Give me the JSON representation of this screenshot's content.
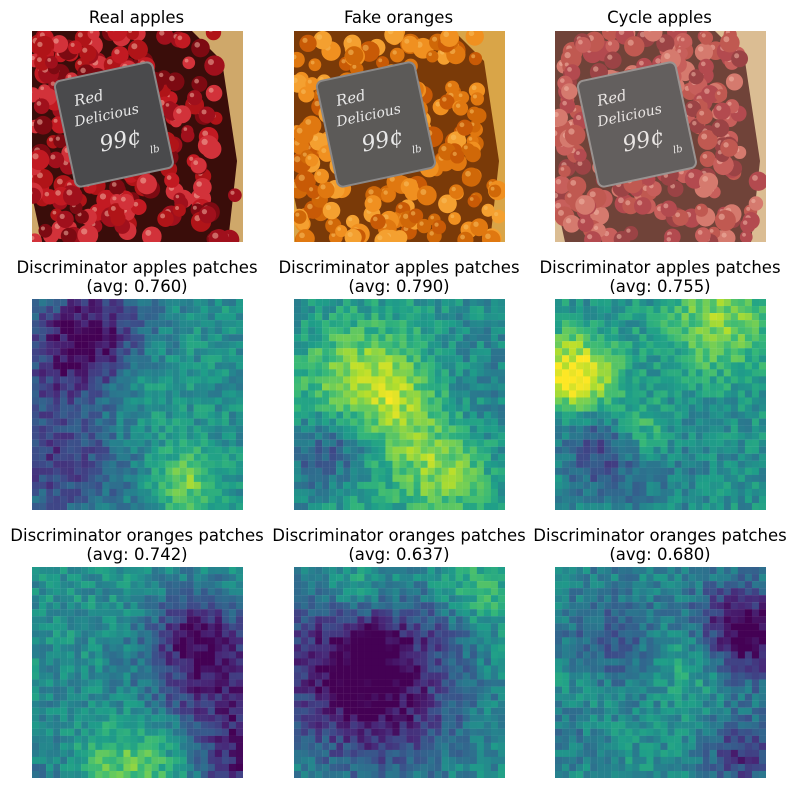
{
  "figure": {
    "panels": [
      {
        "id": "real-apples",
        "title": [
          "Real apples"
        ],
        "kind": "photo",
        "palette": "apples",
        "tint": "full"
      },
      {
        "id": "fake-oranges",
        "title": [
          "Fake oranges"
        ],
        "kind": "photo",
        "palette": "oranges",
        "tint": "full"
      },
      {
        "id": "cycle-apples",
        "title": [
          "Cycle apples"
        ],
        "kind": "photo",
        "palette": "apples",
        "tint": "muted"
      },
      {
        "id": "disc-apples-real",
        "title": [
          "Discriminator apples patches",
          "(avg: 0.760)"
        ],
        "kind": "heatmap",
        "seed": 11
      },
      {
        "id": "disc-apples-fake",
        "title": [
          "Discriminator apples patches",
          "(avg: 0.790)"
        ],
        "kind": "heatmap",
        "seed": 23
      },
      {
        "id": "disc-apples-cycle",
        "title": [
          "Discriminator apples patches",
          "(avg: 0.755)"
        ],
        "kind": "heatmap",
        "seed": 37
      },
      {
        "id": "disc-oranges-real",
        "title": [
          "Discriminator oranges patches",
          "(avg: 0.742)"
        ],
        "kind": "heatmap",
        "seed": 41
      },
      {
        "id": "disc-oranges-fake",
        "title": [
          "Discriminator oranges patches",
          "(avg: 0.637)"
        ],
        "kind": "heatmap",
        "seed": 53
      },
      {
        "id": "disc-oranges-cycle",
        "title": [
          "Discriminator oranges patches",
          "(avg: 0.680)"
        ],
        "kind": "heatmap",
        "seed": 67
      }
    ],
    "sign_text": [
      "Red",
      "Delicious",
      "99¢",
      "lb"
    ],
    "colormap": "viridis"
  }
}
